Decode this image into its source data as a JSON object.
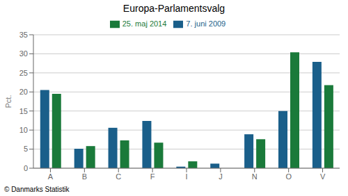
{
  "chart_data": {
    "type": "bar",
    "title": "Europa-Parlamentsvalg",
    "categories": [
      "A",
      "B",
      "C",
      "F",
      "I",
      "J",
      "N",
      "O",
      "V"
    ],
    "series": [
      {
        "name": "7. juni 2009",
        "color": "#1a5f8a",
        "values": [
          20.5,
          5.1,
          10.6,
          12.4,
          0.4,
          1.2,
          8.9,
          15.0,
          27.9
        ]
      },
      {
        "name": "25. maj 2014",
        "color": "#1a7a3a",
        "values": [
          19.5,
          5.8,
          7.3,
          6.7,
          1.8,
          0.0,
          7.6,
          30.4,
          21.8
        ]
      }
    ],
    "ylabel": "Pct.",
    "ylim": [
      0,
      35
    ],
    "yticks": [
      0,
      5,
      10,
      15,
      20,
      25,
      30,
      35
    ],
    "grid": true,
    "legend": "top",
    "annotations": [
      "© Danmarks Statistik"
    ]
  }
}
